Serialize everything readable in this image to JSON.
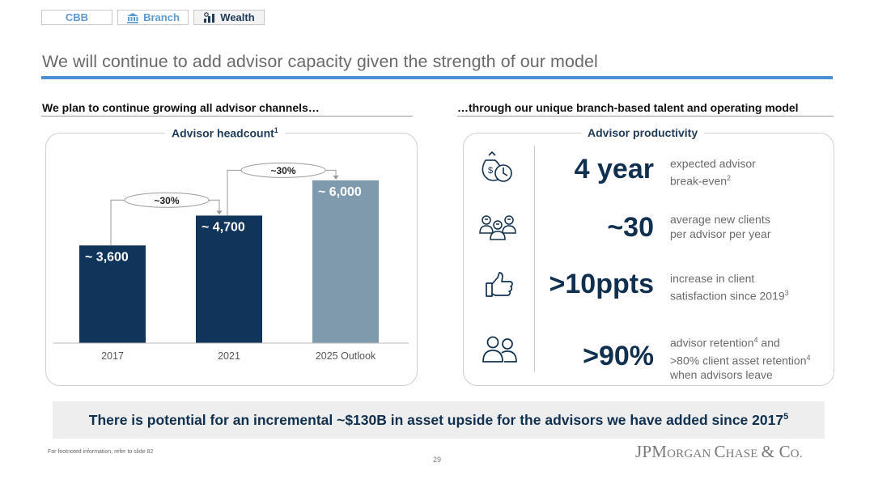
{
  "tabs": [
    {
      "label": "CBB"
    },
    {
      "label": "Branch"
    },
    {
      "label": "Wealth"
    }
  ],
  "title": "We will continue to add advisor capacity given the strength of our model",
  "left_header": "We plan to continue growing all advisor channels…",
  "right_header": "…through our unique branch-based talent and operating model",
  "left_panel_title": "Advisor headcount",
  "left_panel_title_sup": "1",
  "right_panel_title": "Advisor productivity",
  "chart_data": {
    "type": "bar",
    "title": "Advisor headcount",
    "categories": [
      "2017",
      "2021",
      "2025 Outlook"
    ],
    "values": [
      3600,
      4700,
      6000
    ],
    "value_labels": [
      "~ 3,600",
      "~ 4,700",
      "~ 6,000"
    ],
    "bar_colors": [
      "#10345a",
      "#10345a",
      "#7f9aad"
    ],
    "ylim": [
      0,
      6800
    ],
    "growth_annotations": [
      {
        "from": 0,
        "to": 1,
        "label": "~30%"
      },
      {
        "from": 1,
        "to": 2,
        "label": "~30%"
      }
    ],
    "legend": "none",
    "grid": false
  },
  "metrics": [
    {
      "icon": "money-clock-icon",
      "value": "4 year",
      "desc1": "expected advisor",
      "desc2": "break-even",
      "desc2_sup": "2",
      "desc3": "",
      "desc3_sup": ""
    },
    {
      "icon": "client-group-icon",
      "value": "~30",
      "desc1": "average new clients",
      "desc2": "per advisor per year",
      "desc2_sup": "",
      "desc3": "",
      "desc3_sup": ""
    },
    {
      "icon": "thumbs-up-icon",
      "value": ">10ppts",
      "desc1": "increase in client",
      "desc2": "satisfaction since 2019",
      "desc2_sup": "3",
      "desc3": "",
      "desc3_sup": ""
    },
    {
      "icon": "two-people-icon",
      "value": ">90%",
      "desc1": "advisor retention",
      "desc1_sup": "4",
      "desc1_tail": " and",
      "desc2": ">80% client asset retention",
      "desc2_sup": "4",
      "desc3": "when advisors leave",
      "desc3_sup": ""
    }
  ],
  "banner": {
    "text": "There is potential for an incremental ~$130B in asset upside for the advisors we have added since 2017",
    "sup": "5"
  },
  "footnote": "For footnoted information, refer to slide 82",
  "page_number": "29",
  "logo": {
    "part1": "JP",
    "part2": "M",
    "part3": "ORGAN ",
    "part4": "C",
    "part5": "HASE ",
    "part6": "& C",
    "part7": "O."
  },
  "colors": {
    "navy": "#10345a",
    "accent_blue": "#4a8fcf",
    "outlook_bar": "#7f9aad"
  }
}
